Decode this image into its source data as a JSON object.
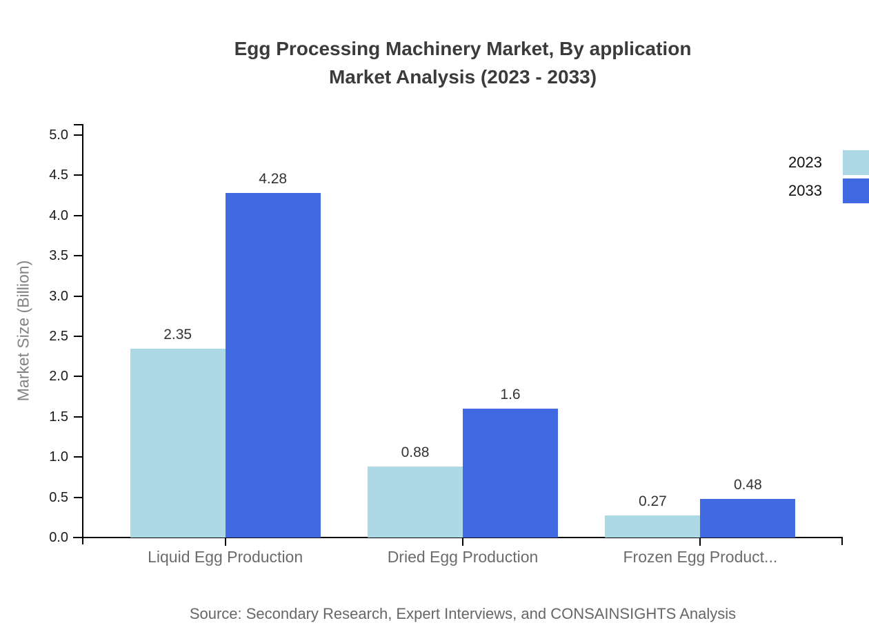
{
  "title": {
    "line1": "Egg Processing Machinery Market, By application",
    "line2": "Market Analysis (2023 - 2033)"
  },
  "chart_data": {
    "type": "bar",
    "categories": [
      "Liquid Egg Production",
      "Dried Egg Production",
      "Frozen Egg Product..."
    ],
    "series": [
      {
        "name": "2023",
        "color": "#ADD8E6",
        "values": [
          2.35,
          0.88,
          0.27
        ],
        "labels": [
          "2.35",
          "0.88",
          "0.27"
        ]
      },
      {
        "name": "2033",
        "color": "#4169E1",
        "values": [
          4.28,
          1.6,
          0.48
        ],
        "labels": [
          "4.28",
          "1.6",
          "0.48"
        ]
      }
    ],
    "xlabel": "",
    "ylabel": "Market Size (Billion)",
    "ylim": [
      0,
      5
    ],
    "ytick_step": 0.5,
    "ytick_labels": [
      "0.0",
      "0.5",
      "1.0",
      "1.5",
      "2.0",
      "2.5",
      "3.0",
      "3.5",
      "4.0",
      "4.5",
      "5.0"
    ],
    "grid": false,
    "legend_position": "top-right",
    "axis_color": "#000000"
  },
  "source": "Source: Secondary Research, Expert Interviews, and CONSAINSIGHTS Analysis"
}
